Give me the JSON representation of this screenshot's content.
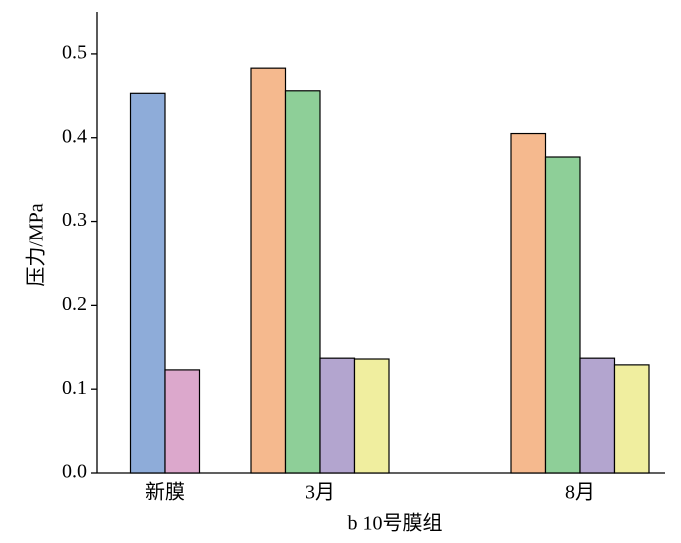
{
  "chart_data": {
    "type": "bar",
    "xlabel": "b 10号膜组",
    "ylabel": "压力/MPa",
    "categories": [
      "新膜",
      "3月",
      "8月"
    ],
    "series": [
      {
        "color": "#8eacd9",
        "values": [
          0.453,
          null,
          null
        ]
      },
      {
        "color": "#dca8cc",
        "values": [
          0.123,
          null,
          null
        ]
      },
      {
        "color": "#f5b98e",
        "values": [
          null,
          0.483,
          0.405
        ]
      },
      {
        "color": "#8ecf98",
        "values": [
          null,
          0.456,
          0.377
        ]
      },
      {
        "color": "#b3a5cf",
        "values": [
          null,
          0.137,
          0.137
        ]
      },
      {
        "color": "#f0ee9f",
        "values": [
          null,
          0.136,
          0.129
        ]
      }
    ],
    "ylim": [
      0,
      0.55
    ],
    "yticks": [
      {
        "value": 0,
        "label": "0.0"
      },
      0.1,
      0.2,
      0.3,
      0.4,
      0.5
    ],
    "grid": false
  }
}
